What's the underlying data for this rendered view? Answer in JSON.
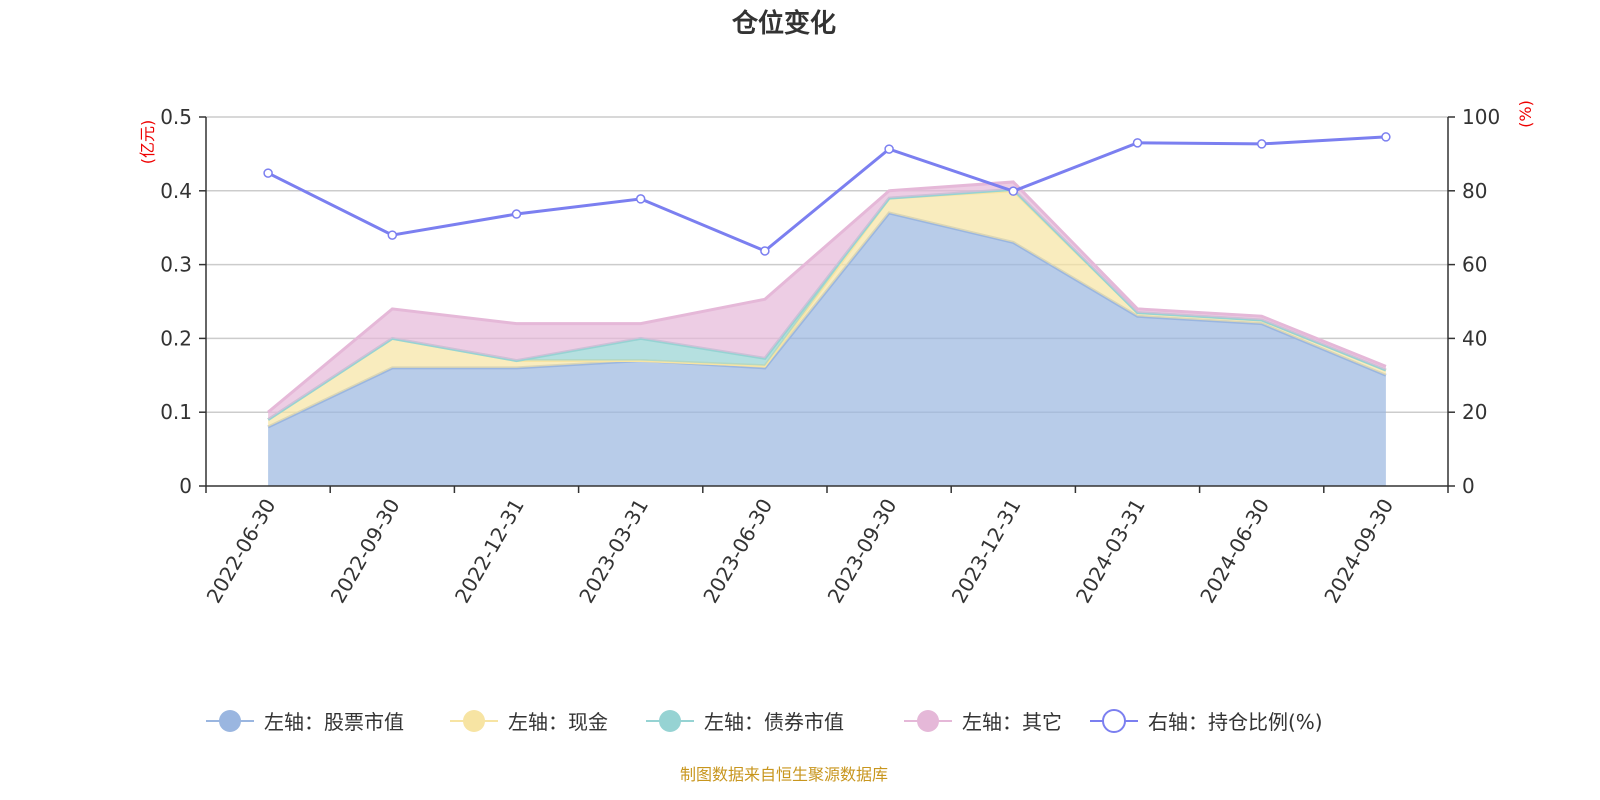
{
  "chart_data": {
    "type": "area",
    "title": "仓位变化",
    "footer": "制图数据来自恒生聚源数据库",
    "ylabel_left": "(亿元)",
    "ylabel_right": "(%)",
    "ylim_left": [
      0,
      0.5
    ],
    "ylim_right": [
      0,
      100
    ],
    "yticks_left": [
      "0",
      "0.1",
      "0.2",
      "0.3",
      "0.4",
      "0.5"
    ],
    "yticks_right": [
      "0",
      "20",
      "40",
      "60",
      "80",
      "100"
    ],
    "grid": true,
    "legend_position": "bottom",
    "categories": [
      "2022-06-30",
      "2022-09-30",
      "2022-12-31",
      "2023-03-31",
      "2023-06-30",
      "2023-09-30",
      "2023-12-31",
      "2024-03-31",
      "2024-06-30",
      "2024-09-30"
    ],
    "series": [
      {
        "name": "左轴：股票市值",
        "axis": "left",
        "stacked": true,
        "color": "#9ab6e0",
        "values": [
          0.08,
          0.16,
          0.16,
          0.17,
          0.16,
          0.37,
          0.33,
          0.23,
          0.22,
          0.15
        ]
      },
      {
        "name": "左轴：现金",
        "axis": "left",
        "stacked": true,
        "color": "#f7e4a3",
        "values": [
          0.01,
          0.04,
          0.01,
          0.0,
          0.003,
          0.02,
          0.07,
          0.005,
          0.005,
          0.007
        ]
      },
      {
        "name": "左轴：债券市值",
        "axis": "left",
        "stacked": true,
        "color": "#96d3d3",
        "values": [
          null,
          null,
          null,
          0.03,
          0.01,
          null,
          0.002,
          null,
          null,
          null
        ]
      },
      {
        "name": "左轴：其它",
        "axis": "left",
        "stacked": true,
        "color": "#e5b8d8",
        "values": [
          0.01,
          0.04,
          0.05,
          0.02,
          0.08,
          0.01,
          0.01,
          0.005,
          0.005,
          0.005
        ]
      },
      {
        "name": "右轴：持仓比例(%)",
        "axis": "right",
        "type": "line",
        "color": "#7b7ff0",
        "values": [
          84.8,
          68.0,
          73.7,
          77.8,
          63.7,
          91.3,
          79.9,
          93.0,
          92.7,
          94.6
        ]
      }
    ]
  }
}
